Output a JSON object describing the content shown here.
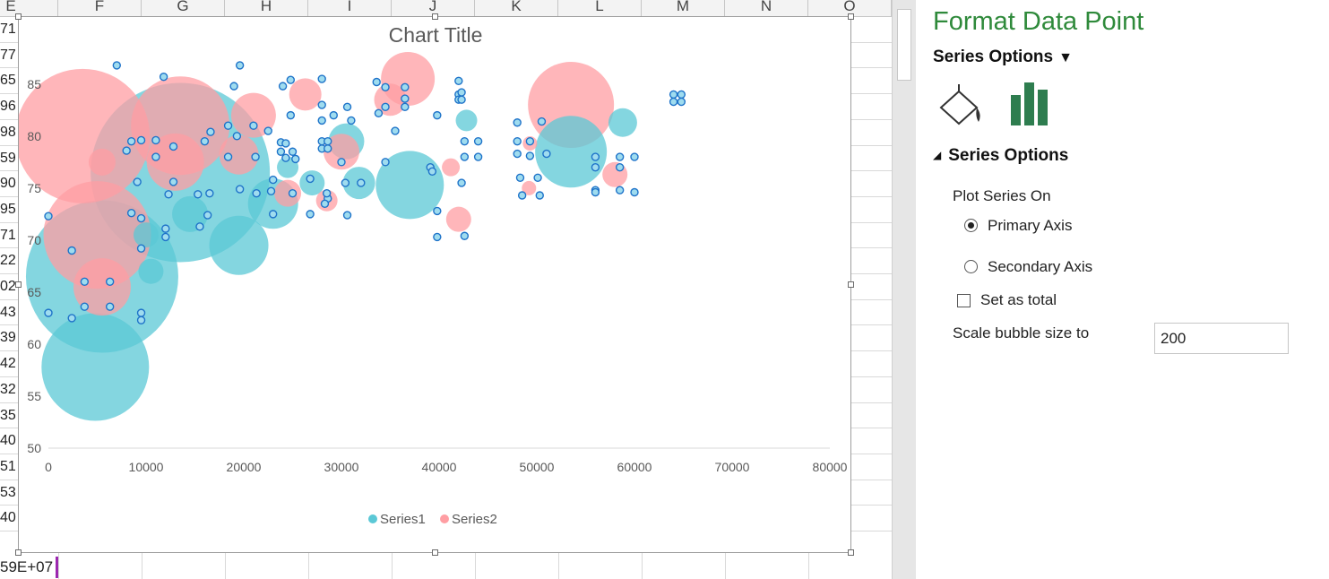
{
  "spreadsheet": {
    "column_headers": [
      "E",
      "F",
      "G",
      "H",
      "I",
      "J",
      "K",
      "L",
      "M",
      "N",
      "O"
    ],
    "row_cells_col_e": [
      "71",
      "77",
      "65",
      "96",
      "98",
      "59",
      "90",
      "95",
      "71",
      "22",
      "02",
      "43",
      "39",
      "42",
      "32",
      "35",
      "40",
      "51",
      "53",
      "40"
    ],
    "bottom_cell": "59E+07"
  },
  "chart": {
    "title": "Chart Title",
    "legend": [
      "Series1",
      "Series2"
    ]
  },
  "chart_data": {
    "type": "bubble",
    "title": "Chart Title",
    "xlim": [
      0,
      80000
    ],
    "ylim": [
      50,
      88
    ],
    "x_ticks": [
      0,
      10000,
      20000,
      30000,
      40000,
      50000,
      60000,
      70000,
      80000
    ],
    "y_ticks": [
      50,
      55,
      60,
      65,
      70,
      75,
      80,
      85
    ],
    "legend_position": "bottom",
    "gridlines": false,
    "series": [
      {
        "name": "Series1",
        "color": "#5bc8d6",
        "big_bubbles": [
          [
            13500,
            76.5,
            1
          ],
          [
            5500,
            66.5,
            0.85
          ],
          [
            4800,
            57.8,
            0.6
          ],
          [
            53500,
            78.5,
            0.4
          ],
          [
            37000,
            75.3,
            0.38
          ],
          [
            23000,
            73.5,
            0.28
          ],
          [
            19500,
            69.5,
            0.33
          ],
          [
            30500,
            79.5,
            0.2
          ],
          [
            14500,
            72.5,
            0.2
          ],
          [
            31800,
            75.5,
            0.18
          ],
          [
            10500,
            67,
            0.14
          ],
          [
            27000,
            75.5,
            0.14
          ],
          [
            42800,
            81.5,
            0.12
          ],
          [
            58800,
            81.3,
            0.16
          ],
          [
            10000,
            70.5,
            0.14
          ],
          [
            24500,
            77,
            0.12
          ]
        ],
        "points": [
          [
            0,
            72.3
          ],
          [
            0,
            63
          ],
          [
            2400,
            69
          ],
          [
            2400,
            62.5
          ],
          [
            3700,
            66
          ],
          [
            3700,
            63.6
          ],
          [
            6300,
            66
          ],
          [
            6300,
            63.6
          ],
          [
            7000,
            86.8
          ],
          [
            9500,
            69.2
          ],
          [
            9500,
            63
          ],
          [
            9500,
            62.3
          ],
          [
            8500,
            79.5
          ],
          [
            9500,
            79.6
          ],
          [
            9500,
            72.1
          ],
          [
            8500,
            72.6
          ],
          [
            8000,
            78.6
          ],
          [
            9100,
            75.6
          ],
          [
            11000,
            79.6
          ],
          [
            11000,
            78
          ],
          [
            12000,
            71.1
          ],
          [
            12000,
            70.3
          ],
          [
            12300,
            74.4
          ],
          [
            12800,
            79
          ],
          [
            12800,
            75.6
          ],
          [
            11800,
            85.7
          ],
          [
            15300,
            74.4
          ],
          [
            15500,
            71.3
          ],
          [
            16000,
            79.5
          ],
          [
            16300,
            72.4
          ],
          [
            16500,
            74.5
          ],
          [
            16600,
            80.4
          ],
          [
            18400,
            81
          ],
          [
            18400,
            78
          ],
          [
            19000,
            84.8
          ],
          [
            19300,
            80
          ],
          [
            19600,
            86.8
          ],
          [
            19600,
            74.9
          ],
          [
            21000,
            81
          ],
          [
            21200,
            78
          ],
          [
            21300,
            74.5
          ],
          [
            22500,
            80.5
          ],
          [
            22800,
            74.7
          ],
          [
            23000,
            75.8
          ],
          [
            23000,
            72.5
          ],
          [
            24000,
            84.8
          ],
          [
            23800,
            79.4
          ],
          [
            23800,
            78.5
          ],
          [
            24300,
            77.9
          ],
          [
            24300,
            79.3
          ],
          [
            24800,
            85.4
          ],
          [
            24800,
            82
          ],
          [
            25000,
            78.5
          ],
          [
            25000,
            74.5
          ],
          [
            25300,
            77.8
          ],
          [
            26800,
            75.9
          ],
          [
            26800,
            72.5
          ],
          [
            28000,
            85.5
          ],
          [
            28000,
            83
          ],
          [
            28000,
            81.5
          ],
          [
            28000,
            79.5
          ],
          [
            28000,
            78.8
          ],
          [
            28600,
            79.5
          ],
          [
            28600,
            78.8
          ],
          [
            28600,
            74
          ],
          [
            28300,
            73.5
          ],
          [
            28500,
            74.5
          ],
          [
            29200,
            82
          ],
          [
            30000,
            77.5
          ],
          [
            30400,
            75.5
          ],
          [
            30600,
            72.4
          ],
          [
            30600,
            82.8
          ],
          [
            31000,
            81.5
          ],
          [
            32000,
            75.5
          ],
          [
            33600,
            85.2
          ],
          [
            33800,
            82.2
          ],
          [
            34500,
            84.7
          ],
          [
            34500,
            82.8
          ],
          [
            34500,
            77.5
          ],
          [
            35500,
            80.5
          ],
          [
            36500,
            84.7
          ],
          [
            36500,
            83.6
          ],
          [
            36500,
            82.8
          ],
          [
            39100,
            77
          ],
          [
            39300,
            76.6
          ],
          [
            39800,
            72.8
          ],
          [
            39800,
            70.3
          ],
          [
            39800,
            82
          ],
          [
            42000,
            85.3
          ],
          [
            42000,
            84
          ],
          [
            42000,
            83.5
          ],
          [
            42300,
            84.2
          ],
          [
            42300,
            83.5
          ],
          [
            42300,
            75.5
          ],
          [
            42600,
            79.5
          ],
          [
            42600,
            78
          ],
          [
            42600,
            70.4
          ],
          [
            44000,
            79.5
          ],
          [
            44000,
            78
          ],
          [
            48000,
            81.3
          ],
          [
            48000,
            79.5
          ],
          [
            48000,
            78.3
          ],
          [
            48300,
            76
          ],
          [
            48500,
            74.3
          ],
          [
            49300,
            79.5
          ],
          [
            49300,
            78.1
          ],
          [
            50100,
            76
          ],
          [
            50300,
            74.3
          ],
          [
            50500,
            81.4
          ],
          [
            51000,
            78.3
          ],
          [
            56000,
            78
          ],
          [
            56000,
            77
          ],
          [
            56000,
            74.8
          ],
          [
            56000,
            74.6
          ],
          [
            58500,
            78
          ],
          [
            58500,
            77
          ],
          [
            58500,
            74.8
          ],
          [
            60000,
            78
          ],
          [
            60000,
            74.6
          ],
          [
            64000,
            84
          ],
          [
            64000,
            83.3
          ],
          [
            64800,
            84
          ],
          [
            64800,
            83.3
          ]
        ]
      },
      {
        "name": "Series2",
        "color": "#ff9ea3",
        "big_bubbles": [
          [
            13500,
            81,
            0.55
          ],
          [
            3500,
            80,
            0.75
          ],
          [
            13000,
            77.5,
            0.32
          ],
          [
            36800,
            85.5,
            0.3
          ],
          [
            53500,
            83,
            0.48
          ],
          [
            5000,
            70.5,
            0.6
          ],
          [
            5500,
            65.5,
            0.32
          ],
          [
            21000,
            82,
            0.25
          ],
          [
            26300,
            84,
            0.18
          ],
          [
            30000,
            78.5,
            0.2
          ],
          [
            19500,
            78.2,
            0.22
          ],
          [
            24500,
            74.5,
            0.15
          ],
          [
            58000,
            76.3,
            0.14
          ],
          [
            42000,
            72,
            0.14
          ],
          [
            35000,
            83.5,
            0.18
          ],
          [
            28500,
            73.8,
            0.12
          ],
          [
            5500,
            77.5,
            0.15
          ],
          [
            41200,
            77,
            0.1
          ],
          [
            49300,
            79.3,
            0.08
          ],
          [
            49200,
            75,
            0.08
          ]
        ],
        "points": []
      }
    ]
  },
  "panel": {
    "title": "Format Data Point",
    "subtitle": "Series Options",
    "section": "Series Options",
    "plot_series_on_label": "Plot Series On",
    "primary_axis": "Primary Axis",
    "secondary_axis": "Secondary Axis",
    "set_as_total": "Set as total",
    "scale_label": "Scale bubble size to",
    "scale_value": "200",
    "accent_color": "#2f8a3b",
    "icons": [
      "fill-line-icon",
      "series-options-chart-icon"
    ]
  }
}
